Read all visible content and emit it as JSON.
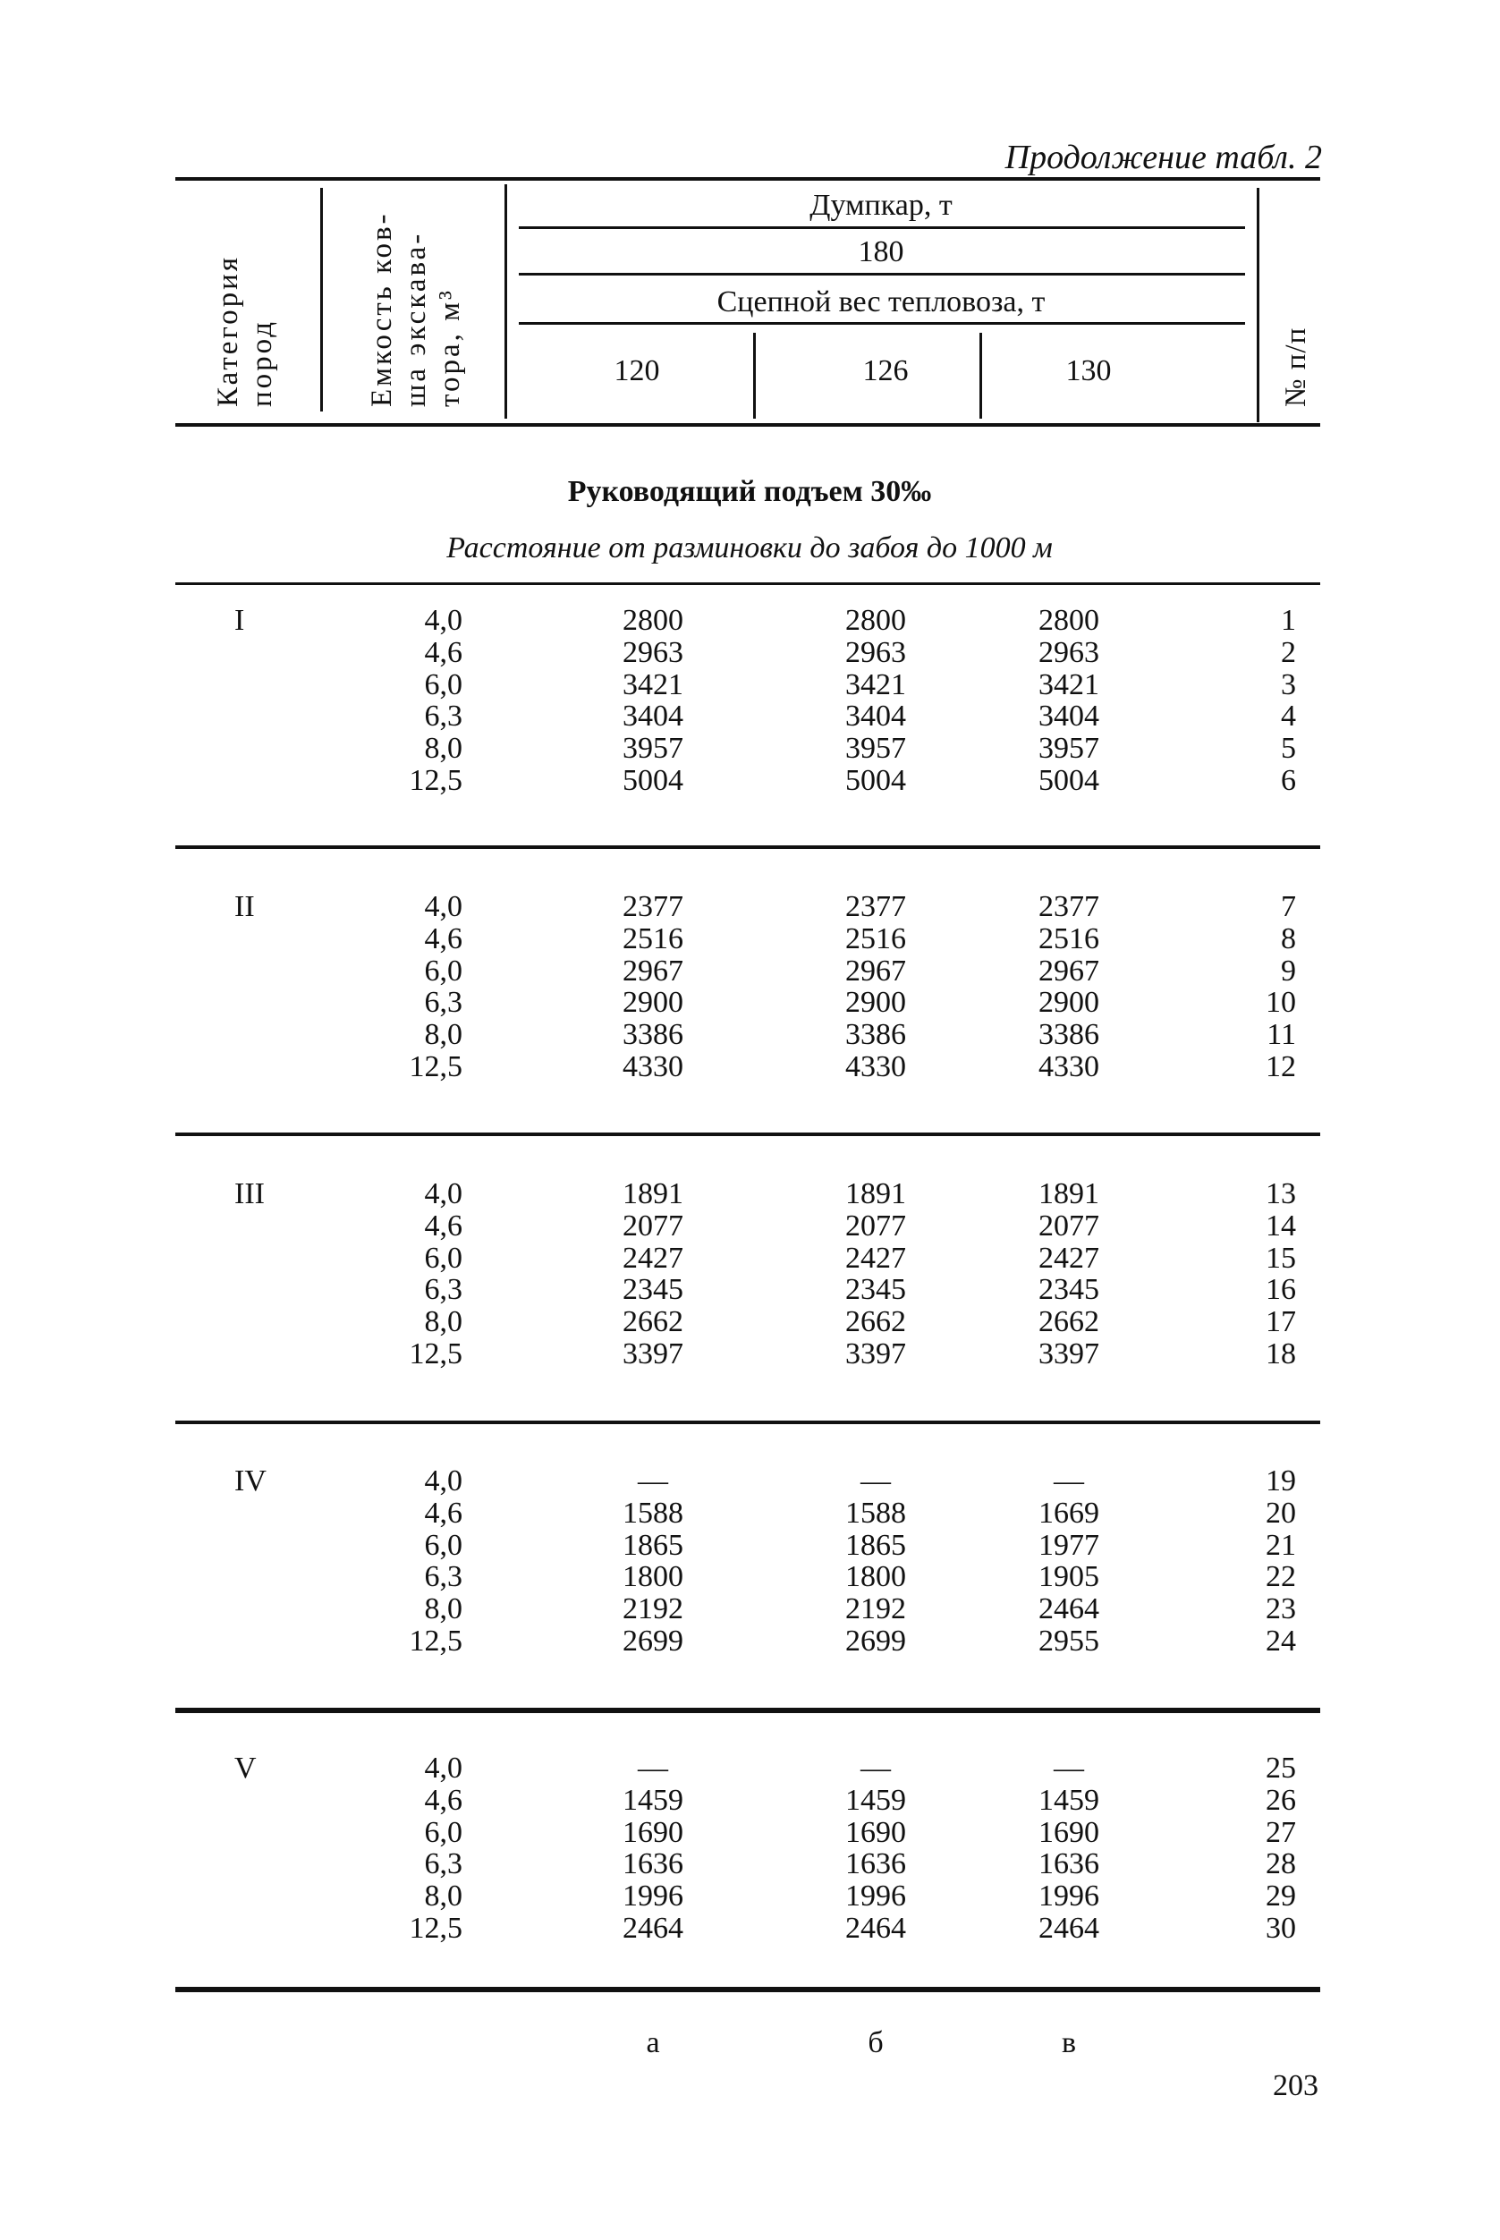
{
  "continuation": "Продолжение табл. 2",
  "header": {
    "category": [
      "Категория",
      "пород"
    ],
    "capacity": [
      "Емкость ков-",
      "ша экскава-",
      "тора, м³"
    ],
    "dumpcar": "Думпкар, т",
    "dumpcar_value": "180",
    "loco": "Сцепной вес тепловоза, т",
    "loco_values": [
      "120",
      "126",
      "130"
    ],
    "number": "№ п/п"
  },
  "section_title": "Руководящий подъем 30‰",
  "section_subtitle": "Расстояние от разминовки до забоя до 1000 м",
  "groups": [
    {
      "category": "I",
      "rows": [
        [
          "4,0",
          "2800",
          "2800",
          "2800",
          "1"
        ],
        [
          "4,6",
          "2963",
          "2963",
          "2963",
          "2"
        ],
        [
          "6,0",
          "3421",
          "3421",
          "3421",
          "3"
        ],
        [
          "6,3",
          "3404",
          "3404",
          "3404",
          "4"
        ],
        [
          "8,0",
          "3957",
          "3957",
          "3957",
          "5"
        ],
        [
          "12,5",
          "5004",
          "5004",
          "5004",
          "6"
        ]
      ]
    },
    {
      "category": "II",
      "rows": [
        [
          "4,0",
          "2377",
          "2377",
          "2377",
          "7"
        ],
        [
          "4,6",
          "2516",
          "2516",
          "2516",
          "8"
        ],
        [
          "6,0",
          "2967",
          "2967",
          "2967",
          "9"
        ],
        [
          "6,3",
          "2900",
          "2900",
          "2900",
          "10"
        ],
        [
          "8,0",
          "3386",
          "3386",
          "3386",
          "11"
        ],
        [
          "12,5",
          "4330",
          "4330",
          "4330",
          "12"
        ]
      ]
    },
    {
      "category": "III",
      "rows": [
        [
          "4,0",
          "1891",
          "1891",
          "1891",
          "13"
        ],
        [
          "4,6",
          "2077",
          "2077",
          "2077",
          "14"
        ],
        [
          "6,0",
          "2427",
          "2427",
          "2427",
          "15"
        ],
        [
          "6,3",
          "2345",
          "2345",
          "2345",
          "16"
        ],
        [
          "8,0",
          "2662",
          "2662",
          "2662",
          "17"
        ],
        [
          "12,5",
          "3397",
          "3397",
          "3397",
          "18"
        ]
      ]
    },
    {
      "category": "IV",
      "rows": [
        [
          "4,0",
          "—",
          "—",
          "—",
          "19"
        ],
        [
          "4,6",
          "1588",
          "1588",
          "1669",
          "20"
        ],
        [
          "6,0",
          "1865",
          "1865",
          "1977",
          "21"
        ],
        [
          "6,3",
          "1800",
          "1800",
          "1905",
          "22"
        ],
        [
          "8,0",
          "2192",
          "2192",
          "2464",
          "23"
        ],
        [
          "12,5",
          "2699",
          "2699",
          "2955",
          "24"
        ]
      ]
    },
    {
      "category": "V",
      "rows": [
        [
          "4,0",
          "—",
          "—",
          "—",
          "25"
        ],
        [
          "4,6",
          "1459",
          "1459",
          "1459",
          "26"
        ],
        [
          "6,0",
          "1690",
          "1690",
          "1690",
          "27"
        ],
        [
          "6,3",
          "1636",
          "1636",
          "1636",
          "28"
        ],
        [
          "8,0",
          "1996",
          "1996",
          "1996",
          "29"
        ],
        [
          "12,5",
          "2464",
          "2464",
          "2464",
          "30"
        ]
      ]
    }
  ],
  "column_letters": [
    "а",
    "б",
    "в"
  ],
  "page_number": "203"
}
